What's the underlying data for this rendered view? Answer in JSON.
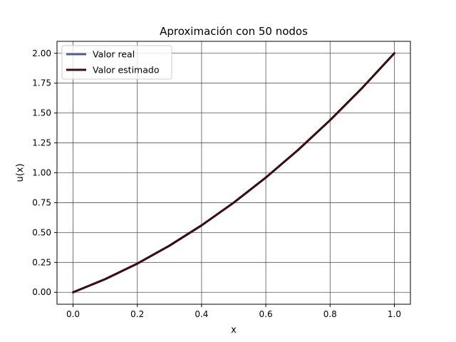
{
  "chart_data": {
    "type": "line",
    "title": "Aproximación con 50 nodos",
    "xlabel": "x",
    "ylabel": "u(x)",
    "xlim": [
      -0.05,
      1.05
    ],
    "ylim": [
      -0.1,
      2.1
    ],
    "grid": true,
    "legend_position": "upper-left",
    "x_ticks": [
      0.0,
      0.2,
      0.4,
      0.6,
      0.8,
      1.0
    ],
    "x_tick_labels": [
      "0.0",
      "0.2",
      "0.4",
      "0.6",
      "0.8",
      "1.0"
    ],
    "y_ticks": [
      0.0,
      0.25,
      0.5,
      0.75,
      1.0,
      1.25,
      1.5,
      1.75,
      2.0
    ],
    "y_tick_labels": [
      "0.00",
      "0.25",
      "0.50",
      "0.75",
      "1.00",
      "1.25",
      "1.50",
      "1.75",
      "2.00"
    ],
    "x": [
      0.0,
      0.1,
      0.2,
      0.3,
      0.4,
      0.5,
      0.6,
      0.7,
      0.8,
      0.9,
      1.0
    ],
    "series": [
      {
        "name": "Valor real",
        "color": "#4c5a94",
        "values": [
          0.0,
          0.11,
          0.24,
          0.39,
          0.56,
          0.75,
          0.96,
          1.19,
          1.44,
          1.71,
          2.0
        ]
      },
      {
        "name": "Valor estimado",
        "color": "#3b0d11",
        "values": [
          0.0,
          0.11,
          0.24,
          0.39,
          0.56,
          0.75,
          0.96,
          1.19,
          1.44,
          1.71,
          2.0
        ]
      }
    ]
  }
}
